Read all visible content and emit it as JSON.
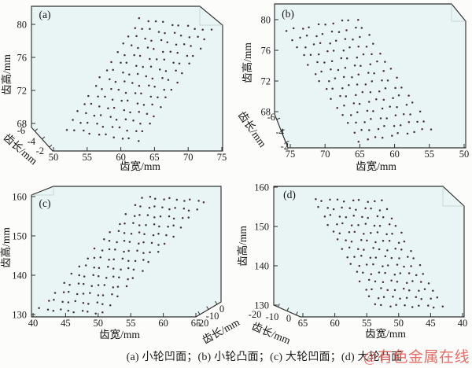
{
  "style": {
    "plot_bg": "#e9f4f4",
    "frame_color": "#2f2f2f",
    "dot_color": "#47333b",
    "back_edge_color": "#a8bcbc",
    "watermark_color": "#e15a52"
  },
  "caption": {
    "text": "(a) 小轮凹面；(b) 小轮凸面；(c) 大轮凹面；(d) 大轮凸面"
  },
  "watermark": {
    "text": "@有色金属在线"
  },
  "chart_data": [
    {
      "type": "scatter",
      "projection": "3d",
      "panel_id": "a",
      "panel_label": "(a)",
      "panel_caption": "小轮凹面",
      "xlabel": "齿宽/mm",
      "ylabel": "齿高/mm",
      "zlabel": "齿长/mm",
      "x_ticks": [
        "50",
        "55",
        "60",
        "65",
        "70",
        "75"
      ],
      "y_ticks": [
        "80",
        "76",
        "72",
        "68"
      ],
      "z_ticks": [
        "-6",
        "-4",
        "-2"
      ],
      "x_range": [
        50,
        75
      ],
      "y_range": [
        68,
        80
      ],
      "z_range": [
        -6,
        -2
      ],
      "x_axis_reversed": false,
      "grid_on": false,
      "point_grid": {
        "rows": 14,
        "cols": 10,
        "count": 140
      },
      "point_extent": {
        "width_mm": [
          52,
          74
        ],
        "height_mm": [
          67,
          79
        ],
        "length_mm": [
          -6,
          -2
        ]
      }
    },
    {
      "type": "scatter",
      "projection": "3d",
      "panel_id": "b",
      "panel_label": "(b)",
      "panel_caption": "小轮凸面",
      "xlabel": "齿宽/mm",
      "ylabel": "齿高/mm",
      "zlabel": "齿长/mm",
      "x_ticks": [
        "75",
        "70",
        "65",
        "60",
        "55",
        "50"
      ],
      "y_ticks": [
        "80",
        "76",
        "72",
        "68"
      ],
      "z_ticks": [
        "-6",
        "-4",
        "-2"
      ],
      "x_range": [
        75,
        50
      ],
      "y_range": [
        68,
        80
      ],
      "z_range": [
        -6,
        -2
      ],
      "x_axis_reversed": true,
      "grid_on": false,
      "point_grid": {
        "rows": 14,
        "cols": 10,
        "count": 140
      },
      "point_extent": {
        "width_mm": [
          52,
          74
        ],
        "height_mm": [
          67,
          79
        ],
        "length_mm": [
          -6,
          -2
        ]
      }
    },
    {
      "type": "scatter",
      "projection": "3d",
      "panel_id": "c",
      "panel_label": "(c)",
      "panel_caption": "大轮凹面",
      "xlabel": "齿宽/mm",
      "ylabel": "齿高/mm",
      "zlabel": "齿长/mm",
      "x_ticks": [
        "40",
        "45",
        "50",
        "55",
        "60",
        "65"
      ],
      "y_ticks": [
        "160",
        "150",
        "140",
        "130"
      ],
      "z_ticks": [
        "-20",
        "-10",
        "0"
      ],
      "x_range": [
        40,
        65
      ],
      "y_range": [
        130,
        160
      ],
      "z_range": [
        -20,
        0
      ],
      "x_axis_reversed": false,
      "grid_on": false,
      "point_grid": {
        "rows": 14,
        "cols": 10,
        "count": 140
      },
      "point_extent": {
        "width_mm": [
          41,
          63
        ],
        "height_mm": [
          131,
          159
        ],
        "length_mm": [
          -20,
          0
        ]
      }
    },
    {
      "type": "scatter",
      "projection": "3d",
      "panel_id": "d",
      "panel_label": "(d)",
      "panel_caption": "大轮凸面",
      "xlabel": "齿宽/mm",
      "ylabel": "齿高/mm",
      "zlabel": "齿长/mm",
      "x_ticks": [
        "65",
        "60",
        "55",
        "50",
        "45",
        "40"
      ],
      "y_ticks": [
        "160",
        "150",
        "140",
        "130"
      ],
      "z_ticks": [
        "-20",
        "-10",
        "0"
      ],
      "x_range": [
        65,
        40
      ],
      "y_range": [
        130,
        160
      ],
      "z_range": [
        -20,
        0
      ],
      "x_axis_reversed": true,
      "grid_on": false,
      "point_grid": {
        "rows": 14,
        "cols": 10,
        "count": 140
      },
      "point_extent": {
        "width_mm": [
          42,
          64
        ],
        "height_mm": [
          131,
          156
        ],
        "length_mm": [
          -20,
          0
        ]
      }
    }
  ]
}
